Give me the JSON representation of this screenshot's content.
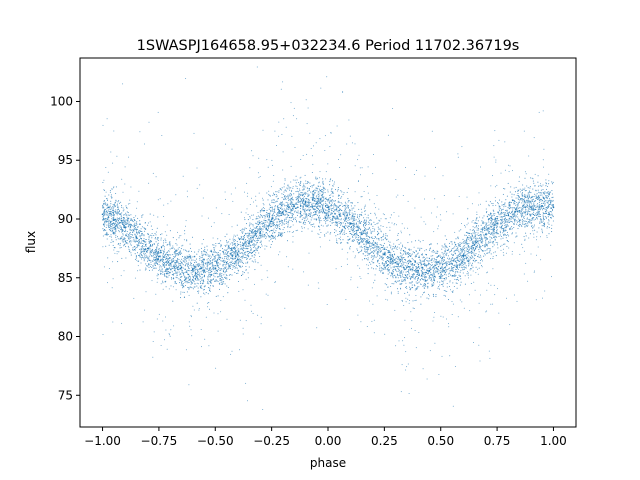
{
  "chart_data": {
    "type": "scatter",
    "title": "1SWASPJ164658.95+032234.6 Period 11702.36719s",
    "xlabel": "phase",
    "ylabel": "flux",
    "xlim": [
      -1.1,
      1.1
    ],
    "ylim": [
      72.3,
      103.7
    ],
    "xticks": [
      -1.0,
      -0.75,
      -0.5,
      -0.25,
      0.0,
      0.25,
      0.5,
      0.75,
      1.0
    ],
    "xtick_labels": [
      "−1.00",
      "−0.75",
      "−0.50",
      "−0.25",
      "0.00",
      "0.25",
      "0.50",
      "0.75",
      "1.00"
    ],
    "yticks": [
      75,
      80,
      85,
      90,
      95,
      100
    ],
    "ytick_labels": [
      "75",
      "80",
      "85",
      "90",
      "95",
      "100"
    ],
    "grid": false,
    "marker_color": "#1f77b4",
    "series": [
      {
        "x": [
          -1.0,
          -0.95,
          -0.9,
          -0.85,
          -0.8,
          -0.75,
          -0.7,
          -0.65,
          -0.6,
          -0.55,
          -0.5,
          -0.45,
          -0.4,
          -0.35,
          -0.3,
          -0.25,
          -0.2,
          -0.15,
          -0.1,
          -0.05,
          0.0,
          0.05,
          0.1,
          0.15,
          0.2,
          0.25,
          0.3,
          0.35,
          0.4,
          0.45,
          0.5,
          0.55,
          0.6,
          0.65,
          0.7,
          0.75,
          0.8,
          0.85,
          0.9,
          0.95,
          1.0
        ],
        "y": [
          90.4,
          89.9,
          89.3,
          88.4,
          87.5,
          86.8,
          86.2,
          85.9,
          85.7,
          85.6,
          85.8,
          86.3,
          87.0,
          87.9,
          88.9,
          89.8,
          90.6,
          91.1,
          91.4,
          91.3,
          91.0,
          90.4,
          89.6,
          88.7,
          87.8,
          87.0,
          86.3,
          85.9,
          85.6,
          85.6,
          85.8,
          86.2,
          86.9,
          87.8,
          88.7,
          89.6,
          90.3,
          90.7,
          91.0,
          91.1,
          91.0
        ]
      }
    ]
  }
}
